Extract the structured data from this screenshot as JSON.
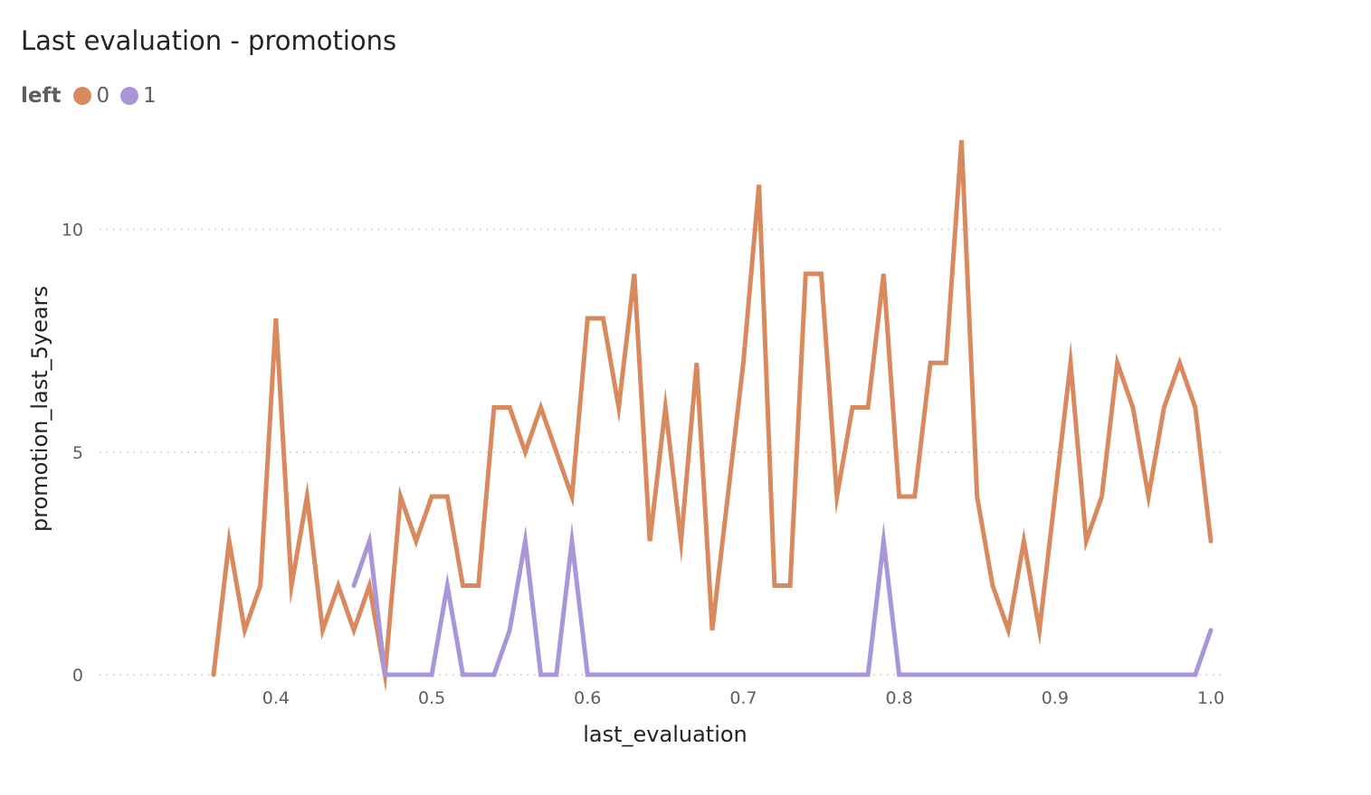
{
  "title": "Last evaluation - promotions",
  "legend": {
    "title": "left",
    "items": [
      {
        "label": "0",
        "color": "#D9895E"
      },
      {
        "label": "1",
        "color": "#A996D8"
      }
    ]
  },
  "chart_data": {
    "type": "line",
    "title": "Last evaluation - promotions",
    "xlabel": "last_evaluation",
    "ylabel": "promotion_last_5years",
    "xlim": [
      0.36,
      1.0
    ],
    "ylim": [
      0,
      12
    ],
    "x_ticks": [
      "0.4",
      "0.5",
      "0.6",
      "0.7",
      "0.8",
      "0.9",
      "1.0"
    ],
    "y_ticks": [
      "0",
      "5",
      "10"
    ],
    "grid": "horizontal dotted",
    "legend_title": "left",
    "legend_position": "top-left",
    "series": [
      {
        "name": "0",
        "color": "#D9895E",
        "x": [
          0.36,
          0.37,
          0.38,
          0.39,
          0.4,
          0.41,
          0.42,
          0.43,
          0.44,
          0.45,
          0.46,
          0.47,
          0.48,
          0.49,
          0.5,
          0.51,
          0.52,
          0.53,
          0.54,
          0.55,
          0.56,
          0.57,
          0.58,
          0.59,
          0.6,
          0.61,
          0.62,
          0.63,
          0.64,
          0.65,
          0.66,
          0.67,
          0.68,
          0.69,
          0.7,
          0.71,
          0.72,
          0.73,
          0.74,
          0.75,
          0.76,
          0.77,
          0.78,
          0.79,
          0.8,
          0.81,
          0.82,
          0.83,
          0.84,
          0.85,
          0.86,
          0.87,
          0.88,
          0.89,
          0.9,
          0.91,
          0.92,
          0.93,
          0.94,
          0.95,
          0.96,
          0.97,
          0.98,
          0.99,
          1.0
        ],
        "values": [
          0,
          3,
          1,
          2,
          8,
          2,
          4,
          1,
          2,
          1,
          2,
          0,
          4,
          3,
          4,
          4,
          2,
          2,
          6,
          6,
          5,
          6,
          5,
          4,
          8,
          8,
          6,
          9,
          3,
          6,
          3,
          7,
          1,
          4,
          7,
          11,
          2,
          2,
          9,
          9,
          4,
          6,
          6,
          9,
          4,
          4,
          7,
          7,
          12,
          4,
          2,
          1,
          3,
          1,
          4,
          7,
          3,
          4,
          7,
          6,
          4,
          6,
          7,
          6,
          3
        ]
      },
      {
        "name": "1",
        "color": "#A996D8",
        "x": [
          0.45,
          0.46,
          0.47,
          0.48,
          0.49,
          0.5,
          0.51,
          0.52,
          0.53,
          0.54,
          0.55,
          0.56,
          0.57,
          0.58,
          0.59,
          0.6,
          0.78,
          0.79,
          0.8,
          0.99,
          1.0
        ],
        "values": [
          2,
          3,
          0,
          0,
          0,
          0,
          2,
          0,
          0,
          0,
          1,
          3,
          0,
          0,
          3,
          0,
          0,
          3,
          0,
          0,
          1
        ]
      }
    ]
  }
}
